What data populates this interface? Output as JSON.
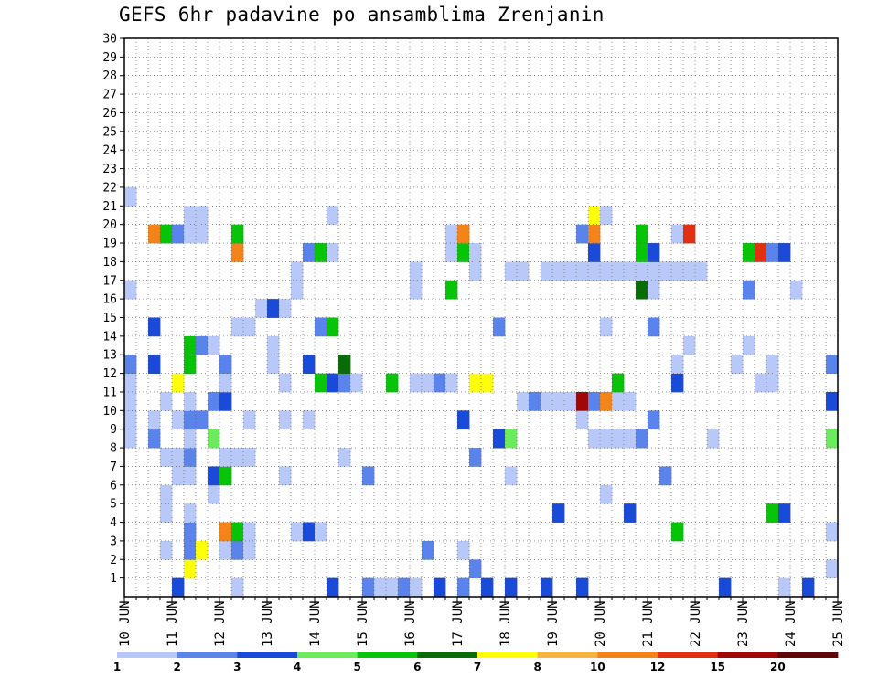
{
  "title": "GEFS 6hr padavine po ansamblima Zrenjanin",
  "chart_data": {
    "type": "heatmap",
    "title": "GEFS 6hr padavine po ansamblima Zrenjanin",
    "xlabel": "",
    "ylabel": "",
    "x_ticks": [
      "10 JUN",
      "11 JUN",
      "12 JUN",
      "13 JUN",
      "14 JUN",
      "15 JUN",
      "16 JUN",
      "17 JUN",
      "18 JUN",
      "19 JUN",
      "20 JUN",
      "21 JUN",
      "22 JUN",
      "23 JUN",
      "24 JUN",
      "25 JUN"
    ],
    "y_ticks": [
      1,
      2,
      3,
      4,
      5,
      6,
      7,
      8,
      9,
      10,
      11,
      12,
      13,
      14,
      15,
      16,
      17,
      18,
      19,
      20,
      21,
      22,
      23,
      24,
      25,
      26,
      27,
      28,
      29,
      30
    ],
    "ylim": [
      0,
      30
    ],
    "steps_per_day": 4,
    "grid": true,
    "levels": [
      1,
      2,
      3,
      4,
      5,
      6,
      7,
      8,
      10,
      12,
      15,
      20
    ],
    "colors": [
      "#b8c8f8",
      "#5a84ec",
      "#1a4ad8",
      "#6cec5c",
      "#08c408",
      "#086c08",
      "#ffff08",
      "#f8b440",
      "#f48418",
      "#e03010",
      "#a00808",
      "#600808"
    ],
    "cells": [
      {
        "y": 0,
        "x": [
          [
            4,
            2
          ],
          [
            9,
            0
          ],
          [
            17,
            2
          ],
          [
            20,
            1
          ],
          [
            21,
            0
          ],
          [
            22,
            0
          ],
          [
            23,
            1
          ],
          [
            24,
            0
          ],
          [
            26,
            2
          ],
          [
            28,
            1
          ],
          [
            30,
            2
          ],
          [
            32,
            2
          ],
          [
            35,
            2
          ],
          [
            38,
            2
          ],
          [
            50,
            2
          ],
          [
            55,
            0
          ],
          [
            57,
            2
          ],
          [
            60,
            1
          ]
        ]
      },
      {
        "y": 1,
        "x": [
          [
            5,
            6
          ],
          [
            29,
            1
          ],
          [
            59,
            0
          ]
        ]
      },
      {
        "y": 2,
        "x": [
          [
            3,
            0
          ],
          [
            5,
            1
          ],
          [
            6,
            6
          ],
          [
            8,
            0
          ],
          [
            9,
            1
          ],
          [
            10,
            0
          ],
          [
            25,
            1
          ],
          [
            28,
            0
          ]
        ]
      },
      {
        "y": 3,
        "x": [
          [
            5,
            1
          ],
          [
            8,
            8
          ],
          [
            9,
            4
          ],
          [
            10,
            0
          ],
          [
            14,
            0
          ],
          [
            15,
            2
          ],
          [
            16,
            0
          ],
          [
            46,
            4
          ],
          [
            59,
            0
          ]
        ]
      },
      {
        "y": 4,
        "x": [
          [
            3,
            0
          ],
          [
            5,
            0
          ],
          [
            36,
            2
          ],
          [
            42,
            2
          ],
          [
            54,
            4
          ],
          [
            55,
            2
          ]
        ]
      },
      {
        "y": 5,
        "x": [
          [
            3,
            0
          ],
          [
            7,
            0
          ],
          [
            40,
            0
          ]
        ]
      },
      {
        "y": 6,
        "x": [
          [
            4,
            0
          ],
          [
            5,
            0
          ],
          [
            7,
            2
          ],
          [
            8,
            4
          ],
          [
            13,
            0
          ],
          [
            20,
            1
          ],
          [
            32,
            0
          ],
          [
            45,
            1
          ]
        ]
      },
      {
        "y": 7,
        "x": [
          [
            3,
            0
          ],
          [
            4,
            0
          ],
          [
            5,
            1
          ],
          [
            8,
            0
          ],
          [
            9,
            0
          ],
          [
            10,
            0
          ],
          [
            18,
            0
          ],
          [
            29,
            1
          ]
        ]
      },
      {
        "y": 8,
        "x": [
          [
            0,
            0
          ],
          [
            2,
            1
          ],
          [
            5,
            0
          ],
          [
            7,
            3
          ],
          [
            31,
            2
          ],
          [
            32,
            3
          ],
          [
            39,
            0
          ],
          [
            40,
            0
          ],
          [
            41,
            0
          ],
          [
            42,
            0
          ],
          [
            43,
            1
          ],
          [
            49,
            0
          ],
          [
            59,
            3
          ]
        ]
      },
      {
        "y": 9,
        "x": [
          [
            0,
            0
          ],
          [
            2,
            0
          ],
          [
            4,
            0
          ],
          [
            5,
            1
          ],
          [
            6,
            1
          ],
          [
            10,
            0
          ],
          [
            13,
            0
          ],
          [
            15,
            0
          ],
          [
            28,
            2
          ],
          [
            38,
            0
          ],
          [
            44,
            1
          ]
        ]
      },
      {
        "y": 10,
        "x": [
          [
            0,
            0
          ],
          [
            3,
            0
          ],
          [
            5,
            0
          ],
          [
            7,
            1
          ],
          [
            8,
            2
          ],
          [
            33,
            0
          ],
          [
            34,
            1
          ],
          [
            35,
            0
          ],
          [
            36,
            0
          ],
          [
            37,
            0
          ],
          [
            38,
            10
          ],
          [
            39,
            1
          ],
          [
            40,
            8
          ],
          [
            41,
            0
          ],
          [
            42,
            0
          ],
          [
            59,
            2
          ]
        ]
      },
      {
        "y": 11,
        "x": [
          [
            0,
            0
          ],
          [
            4,
            6
          ],
          [
            8,
            0
          ],
          [
            13,
            0
          ],
          [
            16,
            4
          ],
          [
            17,
            2
          ],
          [
            18,
            1
          ],
          [
            19,
            0
          ],
          [
            22,
            4
          ],
          [
            24,
            0
          ],
          [
            25,
            0
          ],
          [
            26,
            1
          ],
          [
            27,
            0
          ],
          [
            29,
            6
          ],
          [
            30,
            6
          ],
          [
            41,
            4
          ],
          [
            46,
            2
          ],
          [
            53,
            0
          ],
          [
            54,
            0
          ]
        ]
      },
      {
        "y": 12,
        "x": [
          [
            0,
            1
          ],
          [
            2,
            2
          ],
          [
            5,
            4
          ],
          [
            8,
            1
          ],
          [
            12,
            0
          ],
          [
            15,
            2
          ],
          [
            18,
            5
          ],
          [
            46,
            0
          ],
          [
            51,
            0
          ],
          [
            54,
            0
          ],
          [
            59,
            1
          ]
        ]
      },
      {
        "y": 13,
        "x": [
          [
            5,
            4
          ],
          [
            6,
            1
          ],
          [
            7,
            0
          ],
          [
            12,
            0
          ],
          [
            47,
            0
          ],
          [
            52,
            0
          ]
        ]
      },
      {
        "y": 14,
        "x": [
          [
            2,
            2
          ],
          [
            9,
            0
          ],
          [
            10,
            0
          ],
          [
            16,
            1
          ],
          [
            17,
            4
          ],
          [
            31,
            1
          ],
          [
            40,
            0
          ],
          [
            44,
            1
          ]
        ]
      },
      {
        "y": 15,
        "x": [
          [
            11,
            0
          ],
          [
            12,
            2
          ],
          [
            13,
            0
          ]
        ]
      },
      {
        "y": 16,
        "x": [
          [
            0,
            0
          ],
          [
            14,
            0
          ],
          [
            24,
            0
          ],
          [
            27,
            4
          ],
          [
            43,
            5
          ],
          [
            44,
            0
          ],
          [
            52,
            1
          ],
          [
            56,
            0
          ]
        ]
      },
      {
        "y": 17,
        "x": [
          [
            14,
            0
          ],
          [
            24,
            0
          ],
          [
            29,
            0
          ],
          [
            32,
            0
          ],
          [
            33,
            0
          ],
          [
            35,
            0
          ],
          [
            36,
            0
          ],
          [
            37,
            0
          ],
          [
            38,
            0
          ],
          [
            39,
            0
          ],
          [
            40,
            0
          ],
          [
            41,
            0
          ],
          [
            42,
            0
          ],
          [
            43,
            0
          ],
          [
            44,
            0
          ],
          [
            45,
            0
          ],
          [
            46,
            0
          ],
          [
            47,
            0
          ],
          [
            48,
            0
          ]
        ]
      },
      {
        "y": 18,
        "x": [
          [
            9,
            8
          ],
          [
            15,
            1
          ],
          [
            16,
            4
          ],
          [
            17,
            0
          ],
          [
            27,
            0
          ],
          [
            28,
            4
          ],
          [
            29,
            0
          ],
          [
            39,
            2
          ],
          [
            43,
            4
          ],
          [
            44,
            2
          ],
          [
            52,
            4
          ],
          [
            53,
            9
          ],
          [
            54,
            1
          ],
          [
            55,
            2
          ]
        ]
      },
      {
        "y": 19,
        "x": [
          [
            2,
            8
          ],
          [
            3,
            4
          ],
          [
            4,
            1
          ],
          [
            5,
            0
          ],
          [
            6,
            0
          ],
          [
            9,
            4
          ],
          [
            27,
            0
          ],
          [
            28,
            8
          ],
          [
            38,
            1
          ],
          [
            39,
            8
          ],
          [
            43,
            4
          ],
          [
            46,
            0
          ],
          [
            47,
            9
          ]
        ]
      },
      {
        "y": 20,
        "x": [
          [
            5,
            0
          ],
          [
            6,
            0
          ],
          [
            17,
            0
          ],
          [
            39,
            6
          ],
          [
            40,
            0
          ]
        ]
      },
      {
        "y": 21,
        "x": [
          [
            0,
            0
          ],
          [
            0,
            0
          ],
          [
            0,
            0
          ]
        ]
      }
    ]
  },
  "colorbar": {
    "labels": [
      "1",
      "2",
      "3",
      "4",
      "5",
      "6",
      "7",
      "8",
      "10",
      "12",
      "15",
      "20"
    ]
  }
}
